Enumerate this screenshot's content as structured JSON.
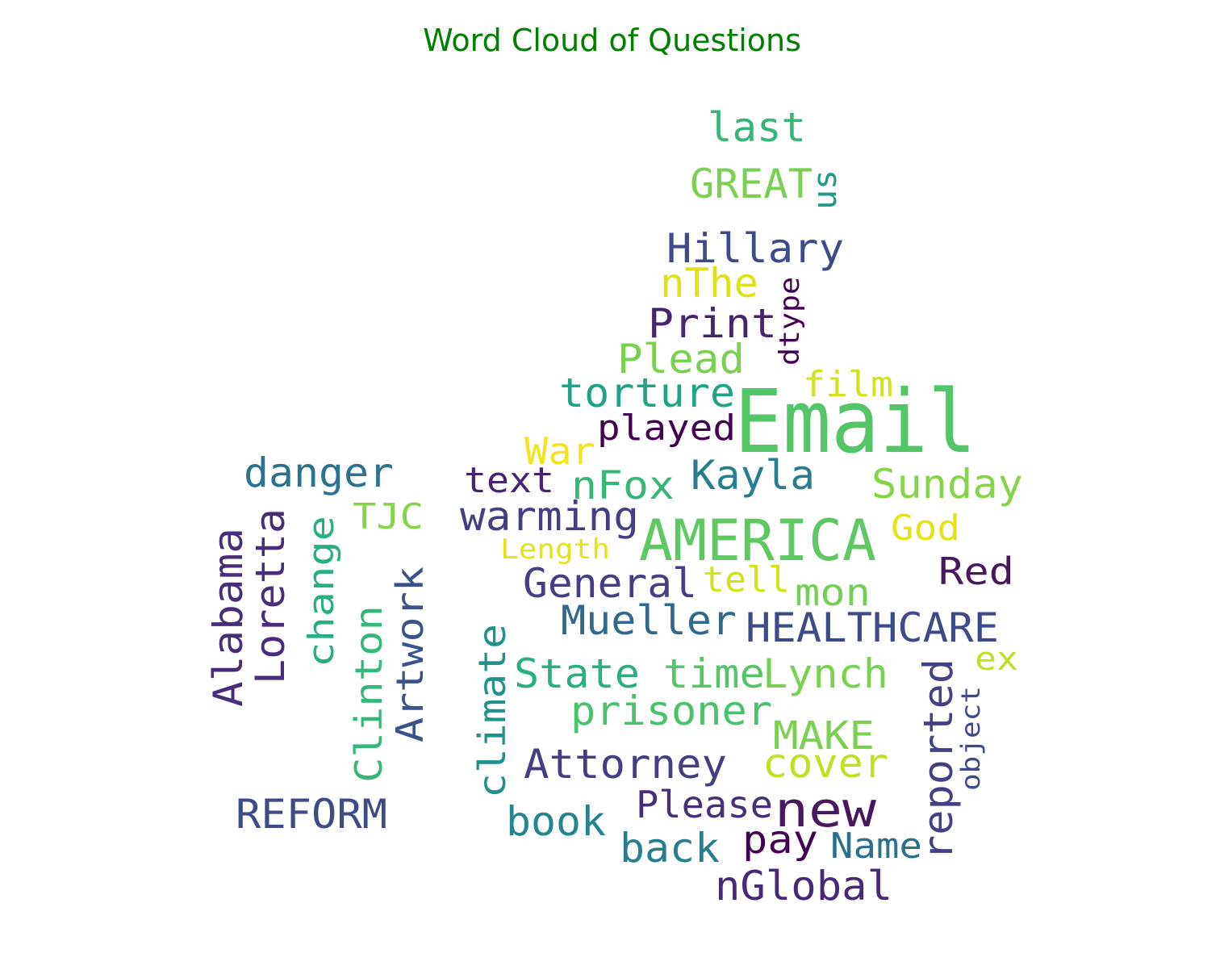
{
  "chart_data": {
    "type": "wordcloud",
    "title": "Word Cloud of Questions",
    "colormap": "viridis",
    "words": [
      {
        "text": "Email",
        "color": "#55c667"
      },
      {
        "text": "AMERICA",
        "color": "#5ec962"
      },
      {
        "text": "new",
        "color": "#46185d"
      },
      {
        "text": "last",
        "color": "#35b779"
      },
      {
        "text": "GREAT",
        "color": "#7ad151"
      },
      {
        "text": "us",
        "color": "#1f9a8a"
      },
      {
        "text": "Hillary",
        "color": "#3e4a89"
      },
      {
        "text": "nThe",
        "color": "#dde318"
      },
      {
        "text": "dtype",
        "color": "#440154"
      },
      {
        "text": "Print",
        "color": "#46256d"
      },
      {
        "text": "Plead",
        "color": "#7ad151"
      },
      {
        "text": "film",
        "color": "#d2e21b"
      },
      {
        "text": "torture",
        "color": "#20a386"
      },
      {
        "text": "played",
        "color": "#440154"
      },
      {
        "text": "War",
        "color": "#f2e51d"
      },
      {
        "text": "danger",
        "color": "#2c728e"
      },
      {
        "text": "text",
        "color": "#482374"
      },
      {
        "text": "nFox",
        "color": "#35b779"
      },
      {
        "text": "Kayla",
        "color": "#277f8e"
      },
      {
        "text": "Sunday",
        "color": "#86d549"
      },
      {
        "text": "TJC",
        "color": "#86d549"
      },
      {
        "text": "warming",
        "color": "#423f85"
      },
      {
        "text": "God",
        "color": "#e5e419"
      },
      {
        "text": "Length",
        "color": "#e5e419"
      },
      {
        "text": "Red",
        "color": "#46185d"
      },
      {
        "text": "Alabama",
        "color": "#472d7b"
      },
      {
        "text": "Loretta",
        "color": "#472d7b"
      },
      {
        "text": "change",
        "color": "#29af7f"
      },
      {
        "text": "Artwork",
        "color": "#3b528b"
      },
      {
        "text": "General",
        "color": "#433e85"
      },
      {
        "text": "tell",
        "color": "#d2e21b"
      },
      {
        "text": "mon",
        "color": "#74d055"
      },
      {
        "text": "Mueller",
        "color": "#31688e"
      },
      {
        "text": "HEALTHCARE",
        "color": "#3e4a89"
      },
      {
        "text": "Clinton",
        "color": "#35b779"
      },
      {
        "text": "climate",
        "color": "#21918c"
      },
      {
        "text": "State",
        "color": "#2ab07f"
      },
      {
        "text": "time",
        "color": "#55c667"
      },
      {
        "text": "Lynch",
        "color": "#7ad151"
      },
      {
        "text": "reported",
        "color": "#424086"
      },
      {
        "text": "ex",
        "color": "#c0df25"
      },
      {
        "text": "prisoner",
        "color": "#4ac16d"
      },
      {
        "text": "object",
        "color": "#3e4a89"
      },
      {
        "text": "MAKE",
        "color": "#7ad151"
      },
      {
        "text": "Attorney",
        "color": "#423f85"
      },
      {
        "text": "cover",
        "color": "#c2df23"
      },
      {
        "text": "REFORM",
        "color": "#3e4a89"
      },
      {
        "text": "Please",
        "color": "#472f7d"
      },
      {
        "text": "book",
        "color": "#25848e"
      },
      {
        "text": "pay",
        "color": "#440154"
      },
      {
        "text": "Name",
        "color": "#2d708e"
      },
      {
        "text": "back",
        "color": "#277f8e"
      },
      {
        "text": "nGlobal",
        "color": "#482878"
      }
    ]
  }
}
